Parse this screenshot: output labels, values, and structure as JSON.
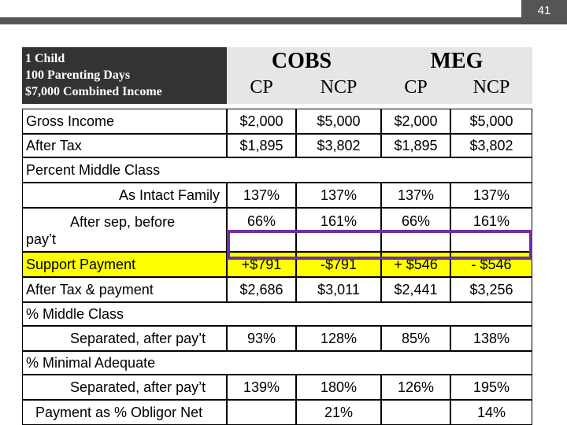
{
  "page_number": "41",
  "header": {
    "lines": [
      "1 Child",
      "100 Parenting Days",
      "$7,000 Combined Income"
    ],
    "groups": [
      "COBS",
      "MEG"
    ],
    "subheads": [
      "CP",
      "NCP",
      "CP",
      "NCP"
    ]
  },
  "table": {
    "rows": [
      {
        "label": "Gross Income",
        "values": [
          "$2,000",
          "$5,000",
          "$2,000",
          "$5,000"
        ]
      },
      {
        "label": "After Tax",
        "values": [
          "$1,895",
          "$3,802",
          "$1,895",
          "$3,802"
        ]
      },
      {
        "label": "Percent Middle Class"
      },
      {
        "label": "As Intact Family",
        "values": [
          "137%",
          "137%",
          "137%",
          "137%"
        ]
      },
      {
        "label": "After sep, before pay’t",
        "values": [
          "66%",
          "161%",
          "66%",
          "161%"
        ]
      },
      {
        "label": "Support Payment",
        "values": [
          "+$791",
          "-$791",
          "+ $546",
          "- $546"
        ]
      },
      {
        "label": "After Tax & payment",
        "values": [
          "$2,686",
          "$3,011",
          "$2,441",
          "$3,256"
        ]
      },
      {
        "label": "% Middle Class"
      },
      {
        "label": "Separated, after pay’t",
        "values": [
          "93%",
          "128%",
          "85%",
          "138%"
        ]
      },
      {
        "label": "% Minimal Adequate"
      },
      {
        "label": "Separated, after pay’t",
        "values": [
          "139%",
          "180%",
          "126%",
          "195%"
        ]
      },
      {
        "label": "Payment as % Obligor Net",
        "values": [
          null,
          "21%",
          null,
          "14%"
        ]
      }
    ]
  }
}
